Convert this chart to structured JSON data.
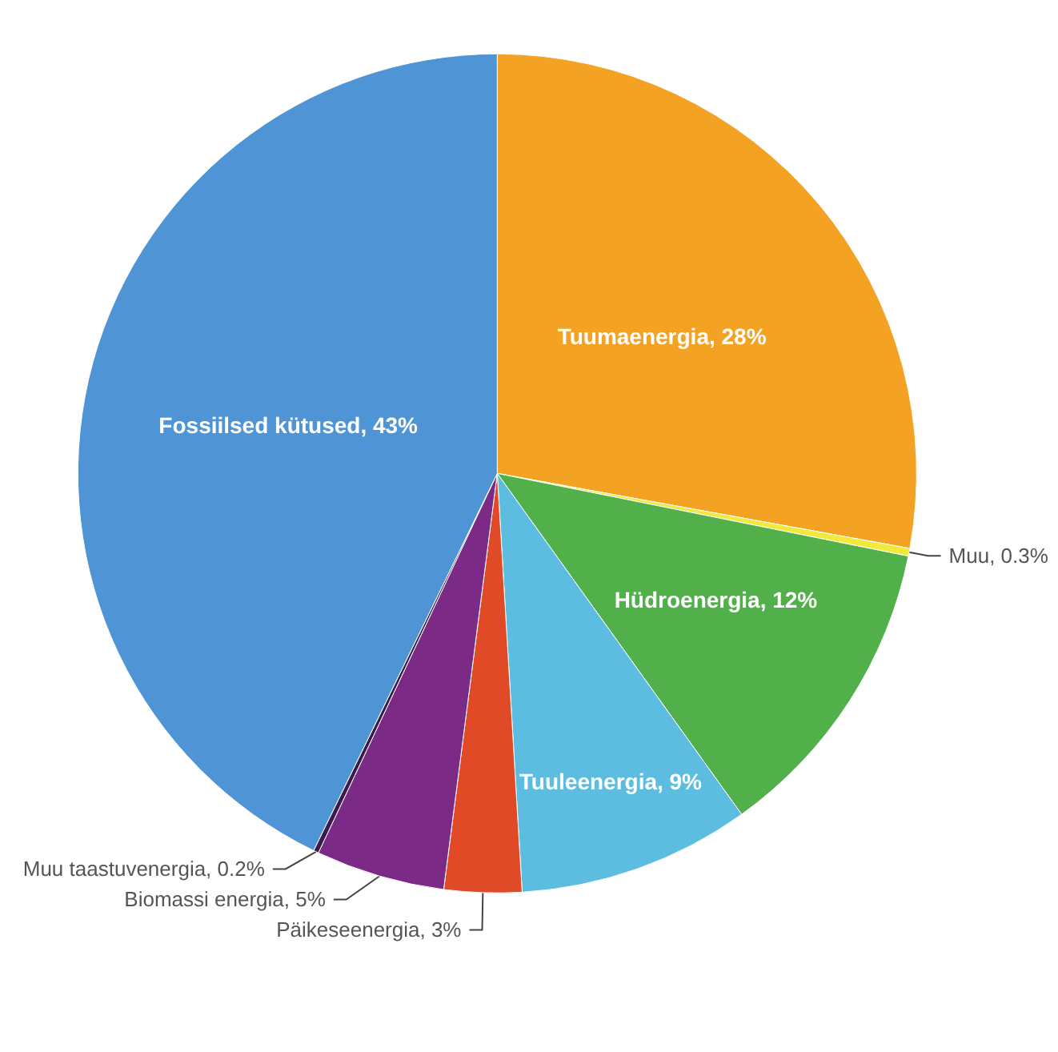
{
  "chart_data": {
    "type": "pie",
    "categories": [
      "Tuumaenergia",
      "Muu",
      "Hüdroenergia",
      "Tuuleenergia",
      "Päikeseenergia",
      "Biomassi energia",
      "Muu taastuvenergia",
      "Fossiilsed kütused"
    ],
    "values": [
      28,
      0.3,
      12,
      9,
      3,
      5,
      0.2,
      43
    ],
    "value_labels": [
      "28%",
      "0.3%",
      "12%",
      "9%",
      "3%",
      "5%",
      "0.2%",
      "43%"
    ],
    "colors": [
      "#f4a224",
      "#f2ea3a",
      "#52b04a",
      "#5cbde0",
      "#e04a26",
      "#7b2a86",
      "#3b1b4e",
      "#4f95d6"
    ]
  }
}
